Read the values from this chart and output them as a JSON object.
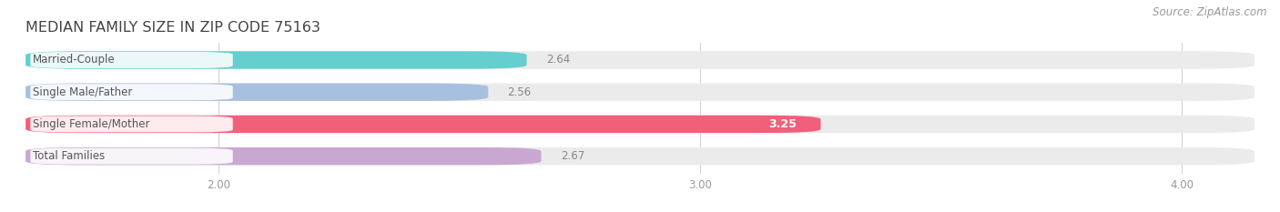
{
  "title": "MEDIAN FAMILY SIZE IN ZIP CODE 75163",
  "source": "Source: ZipAtlas.com",
  "categories": [
    "Married-Couple",
    "Single Male/Father",
    "Single Female/Mother",
    "Total Families"
  ],
  "values": [
    2.64,
    2.56,
    3.25,
    2.67
  ],
  "bar_colors": [
    "#65cece",
    "#a8c0e0",
    "#f0607a",
    "#c8a8d0"
  ],
  "bar_bg_color": "#ebebeb",
  "xlim_data": [
    1.6,
    4.15
  ],
  "x_axis_start": 2.0,
  "xticks": [
    2.0,
    3.0,
    4.0
  ],
  "xtick_labels": [
    "2.00",
    "3.00",
    "4.00"
  ],
  "value_label_outside_color": "#888888",
  "value_label_inside_color": "#ffffff",
  "title_fontsize": 11.5,
  "label_fontsize": 8.5,
  "tick_fontsize": 8.5,
  "source_fontsize": 8.5,
  "bar_height": 0.55,
  "background_color": "#ffffff",
  "label_box_color": "#ffffff",
  "label_text_color": "#555555"
}
